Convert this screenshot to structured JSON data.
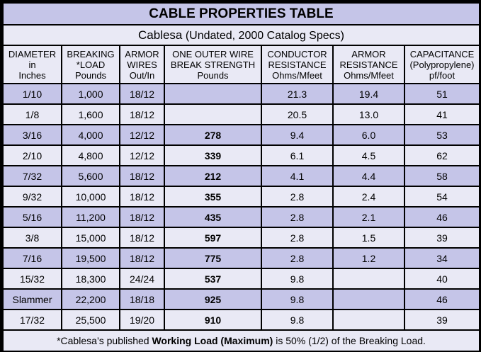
{
  "title": "CABLE PROPERTIES TABLE",
  "subtitle": {
    "brand": "Cablesa",
    "note": " (Undated, 2000 Catalog Specs)"
  },
  "headers": [
    [
      "DIAMETER",
      "in",
      "Inches"
    ],
    [
      "BREAKING",
      "*LOAD",
      "Pounds"
    ],
    [
      "ARMOR",
      "WIRES",
      "Out/In"
    ],
    [
      "ONE OUTER WIRE",
      "BREAK STRENGTH",
      "Pounds"
    ],
    [
      "CONDUCTOR",
      "RESISTANCE",
      "Ohms/Mfeet"
    ],
    [
      "ARMOR",
      "RESISTANCE",
      "Ohms/Mfeet"
    ],
    [
      "CAPACITANCE",
      "(Polypropylene)",
      "pf/foot"
    ]
  ],
  "rows": [
    [
      "1/10",
      "1,000",
      "18/12",
      "",
      "21.3",
      "19.4",
      "51"
    ],
    [
      "1/8",
      "1,600",
      "18/12",
      "",
      "20.5",
      "13.0",
      "41"
    ],
    [
      "3/16",
      "4,000",
      "12/12",
      "278",
      "9.4",
      "6.0",
      "53"
    ],
    [
      "2/10",
      "4,800",
      "12/12",
      "339",
      "6.1",
      "4.5",
      "62"
    ],
    [
      "7/32",
      "5,600",
      "18/12",
      "212",
      "4.1",
      "4.4",
      "58"
    ],
    [
      "9/32",
      "10,000",
      "18/12",
      "355",
      "2.8",
      "2.4",
      "54"
    ],
    [
      "5/16",
      "11,200",
      "18/12",
      "435",
      "2.8",
      "2.1",
      "46"
    ],
    [
      "3/8",
      "15,000",
      "18/12",
      "597",
      "2.8",
      "1.5",
      "39"
    ],
    [
      "7/16",
      "19,500",
      "18/12",
      "775",
      "2.8",
      "1.2",
      "34"
    ],
    [
      "15/32",
      "18,300",
      "24/24",
      "537",
      "9.8",
      "",
      "40"
    ],
    [
      "Slammer",
      "22,200",
      "18/18",
      "925",
      "9.8",
      "",
      "46"
    ],
    [
      "17/32",
      "25,500",
      "19/20",
      "910",
      "9.8",
      "",
      "39"
    ]
  ],
  "footnote": {
    "before": "*Cablesa’s published ",
    "bold": "Working Load (Maximum)",
    "after": " is 50% (1/2) of the Breaking Load."
  }
}
